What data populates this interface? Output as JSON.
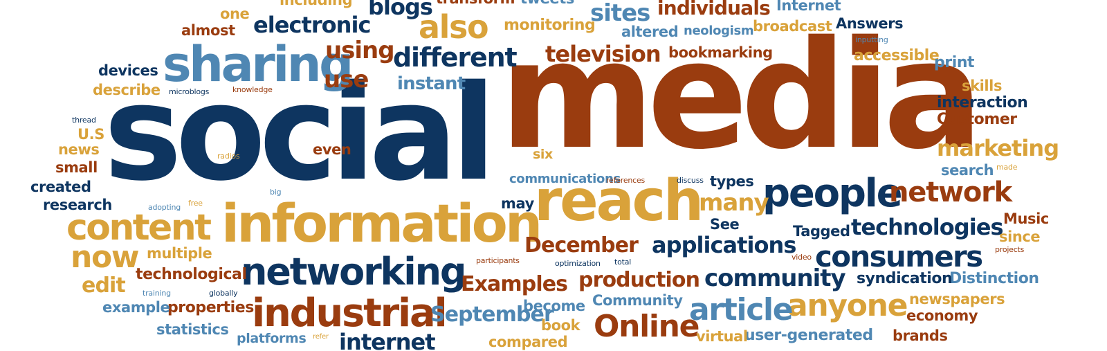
{
  "palette": {
    "navy": "#0e3560",
    "rust": "#9a3c0f",
    "gold": "#d9a23a",
    "steel": "#4f87b3"
  },
  "words": {
    "social": "social",
    "media": "media",
    "reach": "reach",
    "information": "information",
    "sharing": "sharing",
    "content": "content",
    "people": "people",
    "networking": "networking",
    "industrial": "industrial",
    "also": "also",
    "different": "different",
    "network": "network",
    "consumers": "consumers",
    "anyone": "anyone",
    "article": "article",
    "online": "Online",
    "technologies": "technologies",
    "applications": "applications",
    "now": "now",
    "television": "television",
    "marketing": "marketing",
    "many": "many",
    "community": "community",
    "using": "using",
    "use": "use",
    "electronic": "electronic",
    "individuals": "individuals",
    "sites": "sites",
    "blogs": "blogs",
    "production": "production",
    "december": "December",
    "examples": "Examples",
    "september": "September",
    "instant": "instant",
    "bookmarking": "bookmarking",
    "altered": "altered",
    "neologism": "neologism",
    "broadcast": "broadcast",
    "answers": "Answers",
    "internet": "Internet",
    "monitoring": "monitoring",
    "accessible": "accessible",
    "print": "print",
    "skills": "skills",
    "interaction": "interaction",
    "customer": "Customer",
    "search": "search",
    "made": "made",
    "music": "Music",
    "since": "since",
    "projects": "projects",
    "distinction": "Distinction",
    "syndication": "syndication",
    "newspapers": "newspapers",
    "economy": "economy",
    "brands": "brands",
    "user_generated": "user-generated",
    "virtual": "virtual",
    "community_cap": "Community",
    "become": "become",
    "book": "book",
    "compared": "compared",
    "platforms": "platforms",
    "refer": "refer",
    "statistics": "statistics",
    "properties": "properties",
    "example": "example",
    "training": "training",
    "globally": "globally",
    "technological": "technological",
    "edit": "edit",
    "multiple": "multiple",
    "research": "research",
    "created": "created",
    "small": "small",
    "news": "news",
    "us": "U.S",
    "thread": "thread",
    "describe": "describe",
    "devices": "devices",
    "microblogs": "microblogs",
    "knowledge": "knowledge",
    "almost": "almost",
    "one": "one",
    "including": "including",
    "transform": "transform",
    "tweets": "tweets",
    "inputting": "inputting",
    "radios": "radios",
    "even": "even",
    "six": "six",
    "communications": "communications",
    "references": "references",
    "discuss": "discuss",
    "types": "types",
    "may": "may",
    "see": "See",
    "tagged": "Tagged",
    "adopting": "adopting",
    "free": "free",
    "big": "big",
    "participants": "participants",
    "optimization": "optimization",
    "total": "total",
    "video": "video",
    "internet_bottom": "internet"
  }
}
